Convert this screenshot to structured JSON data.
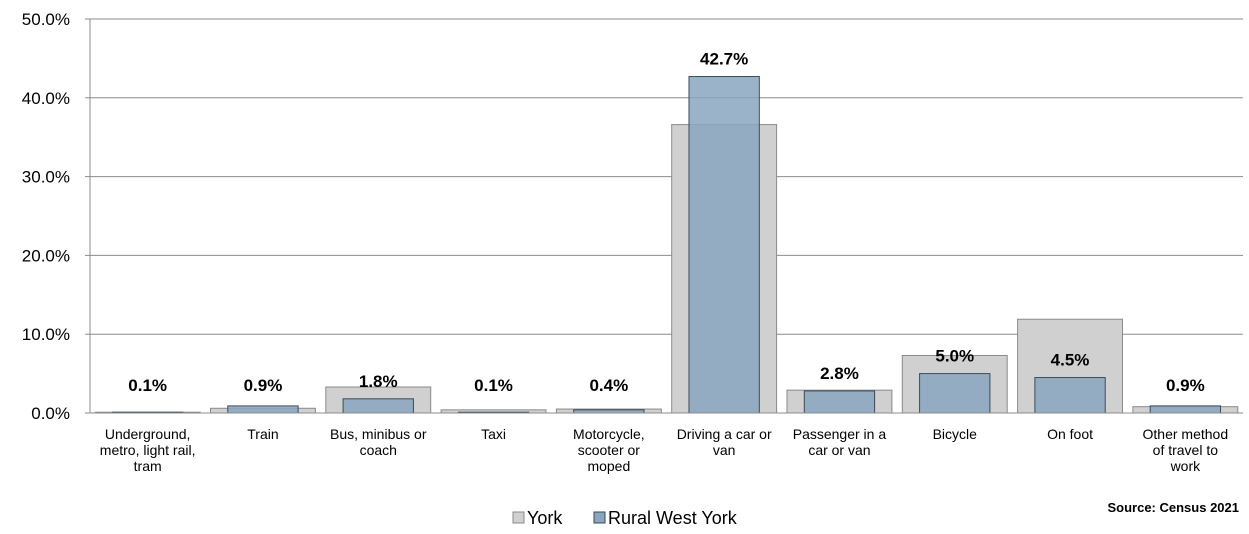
{
  "chart_data": {
    "type": "bar",
    "categories": [
      [
        "Underground,",
        "metro, light rail,",
        "tram"
      ],
      [
        "Train"
      ],
      [
        "Bus, minibus or",
        "coach"
      ],
      [
        "Taxi"
      ],
      [
        "Motorcycle,",
        "scooter or",
        "moped"
      ],
      [
        "Driving a car or",
        "van"
      ],
      [
        "Passenger in a",
        "car or van"
      ],
      [
        "Bicycle"
      ],
      [
        "On foot"
      ],
      [
        "Other method",
        "of travel to",
        "work"
      ]
    ],
    "series": [
      {
        "name": "York",
        "color": "#d0d0d0",
        "values": [
          0.1,
          0.6,
          3.3,
          0.4,
          0.5,
          36.6,
          2.9,
          7.3,
          11.9,
          0.8
        ]
      },
      {
        "name": "Rural West York",
        "color": "#8aa6bf",
        "values": [
          0.1,
          0.9,
          1.8,
          0.1,
          0.4,
          42.7,
          2.8,
          5.0,
          4.5,
          0.9
        ]
      }
    ],
    "data_labels": [
      "0.1%",
      "0.9%",
      "1.8%",
      "0.1%",
      "0.4%",
      "42.7%",
      "2.8%",
      "5.0%",
      "4.5%",
      "0.9%"
    ],
    "y_ticks": [
      "0.0%",
      "10.0%",
      "20.0%",
      "30.0%",
      "40.0%",
      "50.0%"
    ],
    "ylim": [
      0,
      50
    ],
    "grid": true,
    "legend_position": "bottom",
    "title": "",
    "xlabel": "",
    "ylabel": ""
  },
  "source": "Source: Census 2021"
}
